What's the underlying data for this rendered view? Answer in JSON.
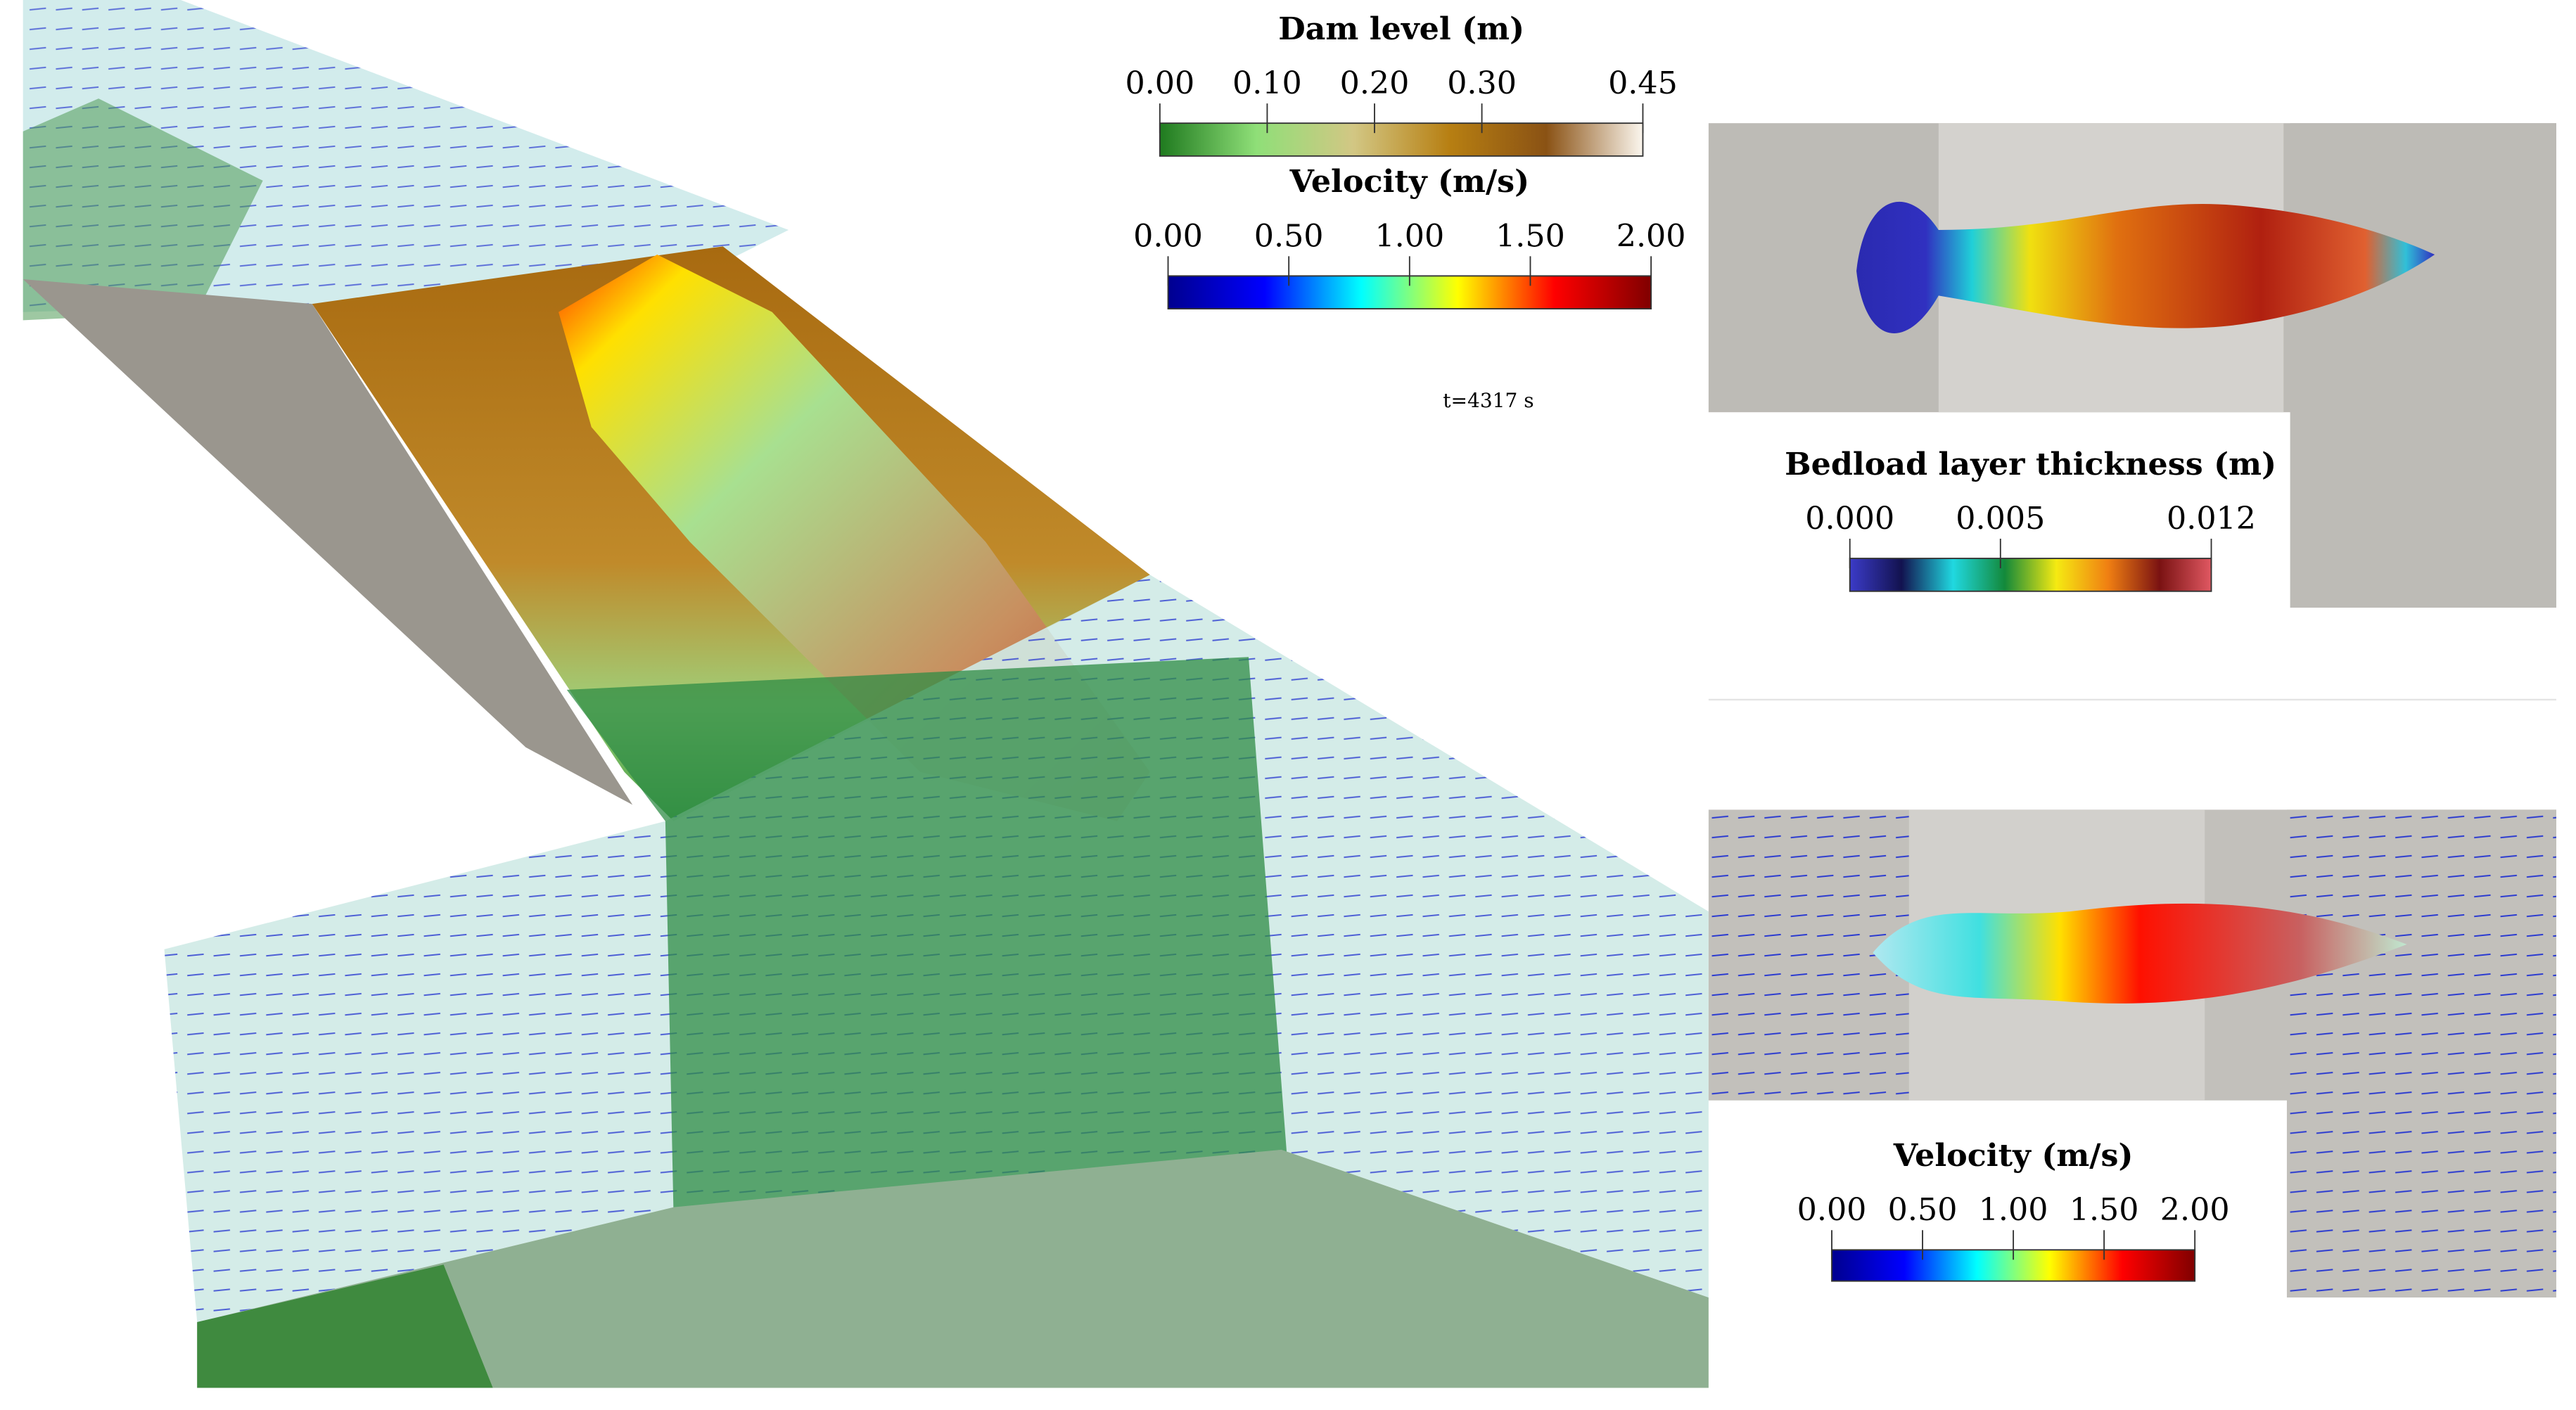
{
  "time_label": "t=4317 s",
  "colorbars": [
    {
      "title": "Dam level (m)",
      "range": [
        0,
        0.45
      ],
      "ticks": [
        {
          "value": 0,
          "label": "0.00"
        },
        {
          "value": 0.1,
          "label": "0.10"
        },
        {
          "value": 0.2,
          "label": "0.20"
        },
        {
          "value": 0.3,
          "label": "0.30"
        },
        {
          "value": 0.45,
          "label": "0.45"
        }
      ],
      "colors": [
        "#1f7a1f",
        "#8fdf78",
        "#d2c784",
        "#b77f12",
        "#8a5214",
        "#fbf6ee"
      ]
    },
    {
      "title": "Velocity (m/s)",
      "range": [
        0,
        2
      ],
      "ticks": [
        {
          "value": 0,
          "label": "0.00"
        },
        {
          "value": 0.5,
          "label": "0.50"
        },
        {
          "value": 1,
          "label": "1.00"
        },
        {
          "value": 1.5,
          "label": "1.50"
        },
        {
          "value": 2,
          "label": "2.00"
        }
      ],
      "colors": [
        "#00008f",
        "#0000ff",
        "#00ffff",
        "#ffff00",
        "#ff0000",
        "#800000"
      ]
    },
    {
      "title": "Bedload layer thickness (m)",
      "range": [
        0,
        0.012
      ],
      "ticks": [
        {
          "value": 0,
          "label": "0.000"
        },
        {
          "value": 0.005,
          "label": "0.005"
        },
        {
          "value": 0.012,
          "label": "0.012"
        }
      ],
      "colors": [
        "#3b3bc8",
        "#12124f",
        "#20d8e0",
        "#13893a",
        "#f5ea12",
        "#f07f12",
        "#7a1212",
        "#e05862"
      ]
    },
    {
      "title": "Velocity (m/s)",
      "range": [
        0,
        2
      ],
      "ticks": [
        {
          "value": 0,
          "label": "0.00"
        },
        {
          "value": 0.5,
          "label": "0.50"
        },
        {
          "value": 1,
          "label": "1.00"
        },
        {
          "value": 1.5,
          "label": "1.50"
        },
        {
          "value": 2,
          "label": "2.00"
        }
      ],
      "colors": [
        "#00008f",
        "#0000ff",
        "#00ffff",
        "#ffff00",
        "#ff0000",
        "#800000"
      ]
    }
  ]
}
